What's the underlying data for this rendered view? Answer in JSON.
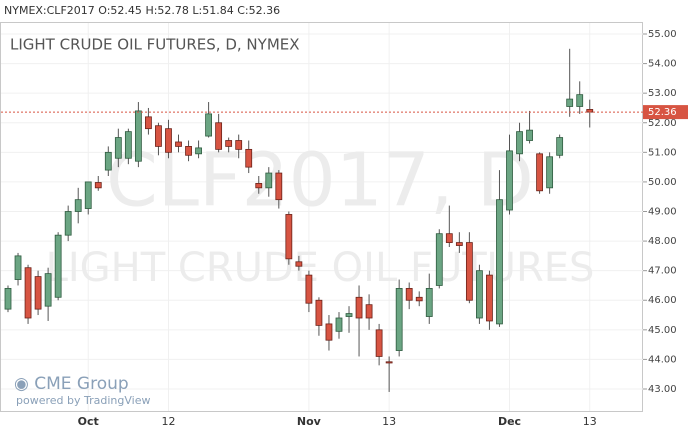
{
  "chart_data": {
    "type": "candlestick",
    "header": {
      "symbol": "NYMEX:CLF2017",
      "open": "O:52.45",
      "high": "H:52.78",
      "low": "L:51.84",
      "close": "C:52.36"
    },
    "title": "LIGHT CRUDE OIL FUTURES, D, NYMEX",
    "watermark": {
      "symbol": "CLF2017, D",
      "name": "LIGHT CRUDE OIL FUTURES"
    },
    "logo": {
      "brand": "CME Group",
      "powered": "powered by TradingView"
    },
    "up_color": "#6ba583",
    "down_color": "#d75442",
    "grid": true,
    "categories": [
      null,
      null,
      null,
      null,
      null,
      null,
      null,
      null,
      "Oct",
      null,
      null,
      null,
      null,
      null,
      null,
      null,
      "12",
      null,
      null,
      null,
      null,
      null,
      null,
      null,
      null,
      null,
      null,
      null,
      null,
      null,
      "Nov",
      null,
      null,
      null,
      null,
      null,
      null,
      null,
      "13",
      null,
      null,
      null,
      null,
      null,
      null,
      null,
      null,
      null,
      null,
      null,
      "Dec",
      null,
      null,
      null,
      null,
      null,
      null,
      null,
      "13"
    ],
    "open": [
      45.7,
      46.7,
      47.1,
      46.8,
      45.8,
      46.1,
      48.2,
      49.0,
      49.1,
      49.98,
      50.4,
      50.8,
      50.8,
      50.7,
      52.2,
      51.9,
      51.8,
      51.35,
      51.2,
      50.95,
      51.55,
      52.0,
      51.4,
      51.4,
      51.1,
      49.95,
      49.8,
      50.3,
      48.9,
      47.3,
      46.85,
      46.0,
      45.2,
      44.95,
      45.45,
      46.1,
      45.85,
      45.0,
      43.92,
      44.3,
      46.4,
      46.1,
      45.45,
      46.5,
      48.25,
      47.95,
      47.95,
      45.4,
      46.85,
      45.2,
      49.05,
      50.95,
      51.4,
      50.95,
      49.8,
      50.9,
      52.55,
      52.55,
      52.45
    ],
    "high": [
      46.5,
      47.6,
      47.2,
      47.0,
      47.1,
      48.3,
      49.2,
      49.8,
      50.0,
      50.2,
      51.2,
      51.8,
      51.8,
      52.7,
      52.5,
      52.0,
      52.1,
      51.6,
      51.4,
      51.4,
      52.7,
      52.3,
      51.5,
      51.6,
      51.4,
      50.2,
      50.5,
      50.4,
      49.0,
      47.5,
      47.0,
      46.1,
      45.5,
      45.6,
      45.8,
      46.5,
      46.2,
      45.2,
      44.1,
      46.7,
      46.6,
      46.3,
      46.9,
      48.4,
      49.2,
      48.3,
      48.3,
      47.2,
      47.0,
      50.4,
      51.6,
      52.0,
      52.4,
      51.0,
      51.0,
      51.6,
      54.5,
      53.4,
      52.78
    ],
    "low": [
      45.6,
      46.5,
      45.2,
      45.5,
      45.3,
      46.0,
      48.0,
      48.6,
      48.9,
      49.7,
      50.2,
      50.5,
      50.6,
      50.5,
      51.6,
      50.9,
      50.8,
      51.0,
      50.7,
      50.8,
      51.5,
      51.0,
      51.0,
      50.8,
      50.3,
      49.6,
      49.5,
      49.1,
      47.2,
      47.0,
      45.6,
      44.8,
      44.3,
      44.7,
      44.9,
      44.1,
      45.0,
      43.8,
      42.9,
      44.1,
      45.7,
      45.8,
      45.2,
      46.4,
      47.8,
      47.6,
      45.9,
      45.2,
      45.0,
      45.1,
      48.9,
      50.7,
      51.3,
      49.6,
      49.6,
      50.8,
      52.2,
      52.3,
      51.84
    ],
    "close": [
      46.4,
      47.5,
      45.4,
      45.7,
      46.9,
      48.2,
      49.0,
      49.4,
      50.0,
      49.8,
      51.0,
      51.5,
      51.7,
      52.4,
      51.8,
      51.2,
      51.0,
      51.2,
      50.9,
      51.15,
      52.3,
      51.1,
      51.2,
      51.1,
      50.5,
      49.8,
      50.3,
      49.4,
      47.4,
      47.15,
      45.9,
      45.15,
      44.65,
      45.4,
      45.55,
      45.4,
      45.4,
      44.1,
      43.88,
      46.4,
      46.0,
      45.98,
      46.4,
      48.25,
      47.95,
      47.85,
      46.0,
      47.0,
      45.3,
      49.4,
      51.05,
      51.7,
      51.75,
      49.7,
      50.85,
      51.5,
      52.8,
      52.95,
      52.36
    ],
    "last_price": 52.36,
    "ylim": [
      42.6,
      55.4
    ],
    "yticks": [
      {
        "value": 43,
        "label": "43.00"
      },
      {
        "value": 44,
        "label": "44.00"
      },
      {
        "value": 45,
        "label": "45.00"
      },
      {
        "value": 46,
        "label": "46.00"
      },
      {
        "value": 47,
        "label": "47.00"
      },
      {
        "value": 48,
        "label": "48.00"
      },
      {
        "value": 49,
        "label": "49.00"
      },
      {
        "value": 50,
        "label": "50.00"
      },
      {
        "value": 51,
        "label": "51.00"
      },
      {
        "value": 52,
        "label": "52.00"
      },
      {
        "value": 53,
        "label": "53.00"
      },
      {
        "value": 54,
        "label": "54.00"
      },
      {
        "value": 55,
        "label": "55.00"
      }
    ]
  }
}
